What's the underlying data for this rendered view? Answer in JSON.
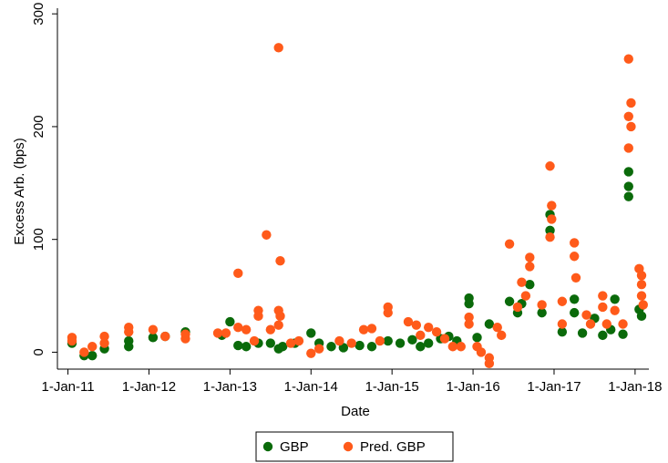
{
  "chart_data": {
    "type": "scatter",
    "x_label": "Date",
    "y_label": "Excess Arb. (bps)",
    "xlim": [
      2010.87,
      2018.17
    ],
    "ylim": [
      -15,
      305
    ],
    "xticks": [
      {
        "value": 2011,
        "label": "1-Jan-11"
      },
      {
        "value": 2012,
        "label": "1-Jan-12"
      },
      {
        "value": 2013,
        "label": "1-Jan-13"
      },
      {
        "value": 2014,
        "label": "1-Jan-14"
      },
      {
        "value": 2015,
        "label": "1-Jan-15"
      },
      {
        "value": 2016,
        "label": "1-Jan-16"
      },
      {
        "value": 2017,
        "label": "1-Jan-17"
      },
      {
        "value": 2018,
        "label": "1-Jan-18"
      }
    ],
    "yticks": [
      0,
      100,
      200,
      300
    ],
    "legend": "bottom",
    "series": [
      {
        "name": "GBP",
        "color": "#0a6a0a",
        "x": [
          2011.05,
          2011.2,
          2011.3,
          2011.45,
          2011.75,
          2011.75,
          2012.05,
          2012.2,
          2012.45,
          2012.9,
          2013.0,
          2013.1,
          2013.2,
          2013.35,
          2013.5,
          2013.6,
          2013.65,
          2013.8,
          2014.0,
          2014.1,
          2014.25,
          2014.4,
          2014.6,
          2014.75,
          2014.95,
          2015.1,
          2015.25,
          2015.35,
          2015.45,
          2015.6,
          2015.7,
          2015.8,
          2015.95,
          2015.95,
          2016.05,
          2016.2,
          2016.45,
          2016.55,
          2016.6,
          2016.7,
          2016.85,
          2016.95,
          2016.95,
          2017.1,
          2017.25,
          2017.25,
          2017.35,
          2017.5,
          2017.6,
          2017.7,
          2017.75,
          2017.85,
          2017.92,
          2017.92,
          2017.92,
          2018.05,
          2018.08
        ],
        "values": [
          8,
          -3,
          -3,
          3,
          5,
          10,
          13,
          14,
          18,
          15,
          27,
          6,
          5,
          8,
          8,
          3,
          5,
          8,
          17,
          8,
          5,
          4,
          6,
          5,
          10,
          8,
          11,
          5,
          8,
          12,
          14,
          10,
          48,
          43,
          13,
          25,
          45,
          35,
          43,
          60,
          35,
          122,
          108,
          18,
          47,
          35,
          17,
          30,
          15,
          20,
          47,
          16,
          160,
          147,
          138,
          38,
          32
        ]
      },
      {
        "name": "Pred. GBP",
        "color": "#ff5a1a",
        "x": [
          2011.05,
          2011.05,
          2011.2,
          2011.3,
          2011.45,
          2011.45,
          2011.75,
          2011.75,
          2012.05,
          2012.2,
          2012.45,
          2012.45,
          2012.85,
          2012.95,
          2013.1,
          2013.1,
          2013.2,
          2013.3,
          2013.35,
          2013.35,
          2013.45,
          2013.5,
          2013.6,
          2013.62,
          2013.6,
          2013.62,
          2013.6,
          2013.75,
          2013.85,
          2014.0,
          2014.1,
          2014.35,
          2014.5,
          2014.65,
          2014.75,
          2014.85,
          2014.95,
          2014.95,
          2015.2,
          2015.3,
          2015.35,
          2015.45,
          2015.55,
          2015.65,
          2015.75,
          2015.85,
          2015.95,
          2015.95,
          2016.05,
          2016.1,
          2016.2,
          2016.2,
          2016.3,
          2016.35,
          2016.45,
          2016.55,
          2016.6,
          2016.65,
          2016.7,
          2016.7,
          2016.85,
          2016.95,
          2016.97,
          2016.97,
          2016.95,
          2017.1,
          2017.1,
          2017.25,
          2017.25,
          2017.27,
          2017.4,
          2017.45,
          2017.6,
          2017.6,
          2017.65,
          2017.75,
          2017.85,
          2017.92,
          2017.95,
          2017.92,
          2017.95,
          2017.92,
          2018.05,
          2018.08,
          2018.08,
          2018.08,
          2018.1
        ],
        "values": [
          13,
          10,
          0,
          5,
          14,
          8,
          22,
          18,
          20,
          14,
          12,
          16,
          17,
          17,
          70,
          22,
          20,
          10,
          37,
          32,
          104,
          20,
          270,
          81,
          37,
          32,
          24,
          8,
          10,
          -1,
          3,
          10,
          8,
          20,
          21,
          10,
          40,
          35,
          27,
          24,
          15,
          22,
          18,
          12,
          5,
          5,
          31,
          25,
          5,
          0,
          -10,
          -5,
          22,
          15,
          96,
          40,
          62,
          50,
          84,
          76,
          42,
          165,
          130,
          118,
          102,
          45,
          25,
          97,
          85,
          66,
          33,
          25,
          50,
          40,
          25,
          37,
          25,
          260,
          221,
          209,
          200,
          181,
          74,
          68,
          60,
          50,
          42
        ]
      }
    ]
  }
}
